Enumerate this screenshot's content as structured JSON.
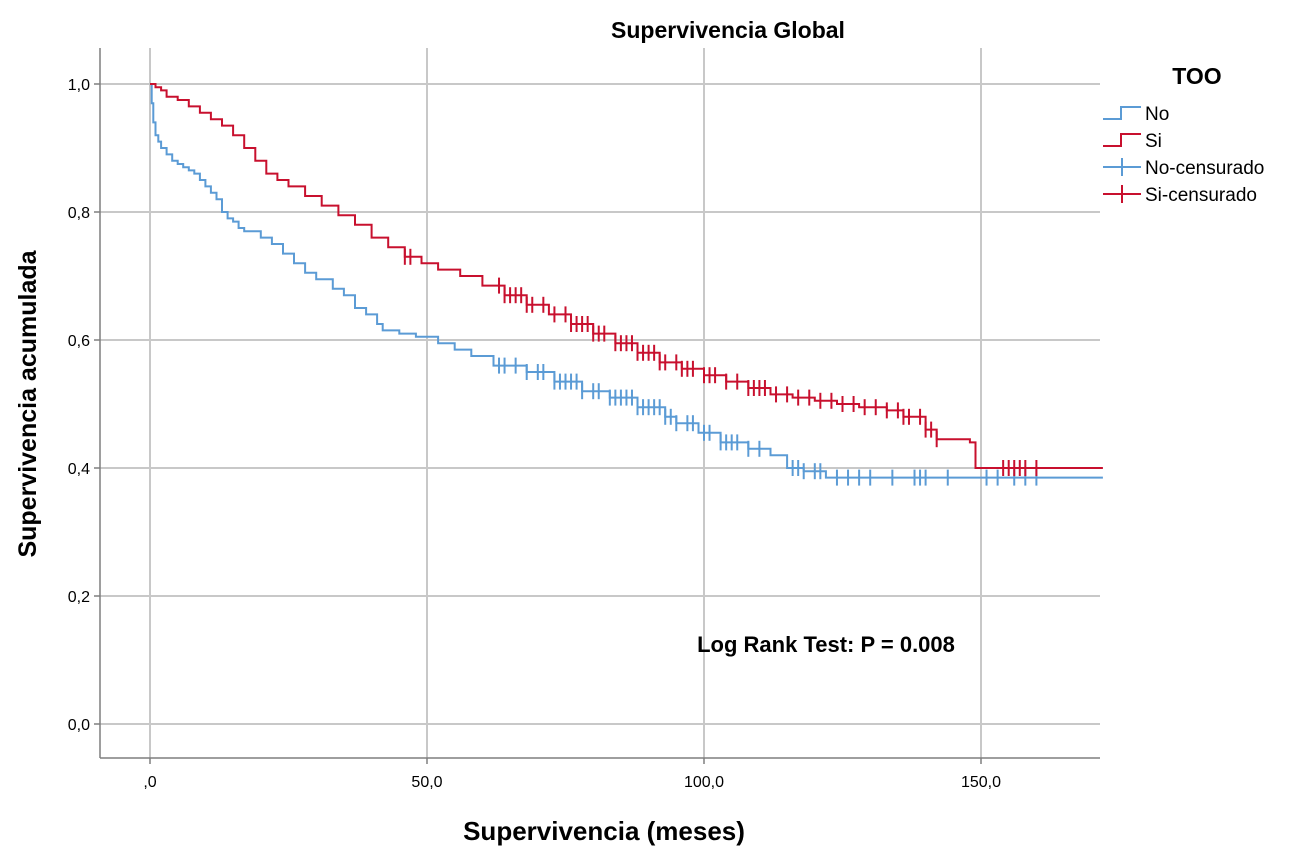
{
  "chart_data": {
    "type": "line",
    "step": true,
    "title": "Supervivencia Global",
    "xlabel": "Supervivencia (meses)",
    "ylabel": "Supervivencia acumulada",
    "xlim": [
      0,
      172
    ],
    "ylim": [
      0,
      1
    ],
    "xticks": [
      0,
      50,
      100,
      150
    ],
    "xtick_labels": [
      ",0",
      "50,0",
      "100,0",
      "150,0"
    ],
    "yticks": [
      0,
      0.2,
      0.4,
      0.6,
      0.8,
      1.0
    ],
    "ytick_labels": [
      "0,0",
      "0,2",
      "0,4",
      "0,6",
      "0,8",
      "1,0"
    ],
    "grid": true,
    "legend": {
      "title": "TOO",
      "placement": "right",
      "entries": [
        "No",
        "Si",
        "No-censurado",
        "Si-censurado"
      ]
    },
    "annotation": "Log Rank Test: P = 0.008",
    "colors": {
      "No": "#5b9bd5",
      "Si": "#c8102e",
      "grid": "#c8c8c8",
      "axis": "#7f7f7f"
    },
    "series": [
      {
        "name": "No",
        "x": [
          0,
          0.3,
          0.6,
          1,
          1.5,
          2,
          3,
          4,
          5,
          6,
          7,
          8,
          9,
          10,
          11,
          12,
          13,
          14,
          15,
          16,
          17,
          20,
          22,
          24,
          26,
          28,
          30,
          33,
          35,
          37,
          39,
          41,
          42,
          45,
          48,
          52,
          55,
          58,
          62,
          68,
          73,
          78,
          83,
          88,
          93,
          95,
          99,
          103,
          108,
          112,
          115,
          118,
          122,
          172
        ],
        "y": [
          1.0,
          0.97,
          0.94,
          0.92,
          0.91,
          0.9,
          0.89,
          0.88,
          0.875,
          0.87,
          0.865,
          0.86,
          0.85,
          0.84,
          0.83,
          0.82,
          0.8,
          0.79,
          0.785,
          0.775,
          0.77,
          0.76,
          0.75,
          0.735,
          0.72,
          0.705,
          0.695,
          0.68,
          0.67,
          0.65,
          0.64,
          0.625,
          0.615,
          0.61,
          0.605,
          0.595,
          0.585,
          0.575,
          0.56,
          0.55,
          0.535,
          0.52,
          0.51,
          0.495,
          0.48,
          0.47,
          0.455,
          0.44,
          0.43,
          0.42,
          0.4,
          0.395,
          0.385,
          0.385
        ]
      },
      {
        "name": "Si",
        "x": [
          0,
          1,
          2,
          3,
          5,
          7,
          9,
          11,
          13,
          15,
          17,
          19,
          21,
          23,
          25,
          28,
          31,
          34,
          37,
          40,
          43,
          46,
          49,
          52,
          56,
          60,
          64,
          68,
          72,
          76,
          80,
          84,
          88,
          92,
          96,
          100,
          104,
          108,
          112,
          116,
          120,
          124,
          128,
          133,
          136,
          140,
          142,
          148,
          149,
          172
        ],
        "y": [
          1.0,
          0.995,
          0.99,
          0.98,
          0.975,
          0.965,
          0.955,
          0.945,
          0.935,
          0.92,
          0.9,
          0.88,
          0.86,
          0.85,
          0.84,
          0.825,
          0.81,
          0.795,
          0.78,
          0.76,
          0.745,
          0.73,
          0.72,
          0.71,
          0.7,
          0.685,
          0.67,
          0.655,
          0.64,
          0.625,
          0.61,
          0.595,
          0.58,
          0.565,
          0.555,
          0.545,
          0.535,
          0.525,
          0.515,
          0.51,
          0.505,
          0.5,
          0.495,
          0.49,
          0.48,
          0.46,
          0.445,
          0.44,
          0.4,
          0.4
        ]
      }
    ],
    "censored": [
      {
        "name": "No-censurado",
        "x": [
          63,
          64,
          66,
          68,
          70,
          71,
          73,
          74,
          75,
          76,
          77,
          78,
          80,
          81,
          83,
          84,
          85,
          86,
          87,
          88,
          89,
          90,
          91,
          92,
          93,
          94,
          95,
          97,
          98,
          100,
          101,
          103,
          104,
          105,
          106,
          108,
          110,
          116,
          117,
          118,
          120,
          121,
          124,
          126,
          128,
          130,
          134,
          138,
          139,
          140,
          144,
          151,
          153,
          156,
          158,
          160
        ]
      },
      {
        "name": "Si-censurado",
        "x": [
          46,
          47,
          63,
          64,
          65,
          66,
          67,
          68,
          69,
          71,
          73,
          75,
          76,
          77,
          78,
          79,
          80,
          81,
          82,
          84,
          85,
          86,
          87,
          88,
          89,
          90,
          91,
          92,
          93,
          95,
          96,
          97,
          98,
          100,
          101,
          102,
          104,
          106,
          108,
          109,
          110,
          111,
          113,
          115,
          117,
          119,
          121,
          123,
          125,
          127,
          129,
          131,
          133,
          135,
          136,
          137,
          139,
          140,
          141,
          142,
          154,
          155,
          156,
          157,
          158,
          160
        ]
      }
    ]
  }
}
